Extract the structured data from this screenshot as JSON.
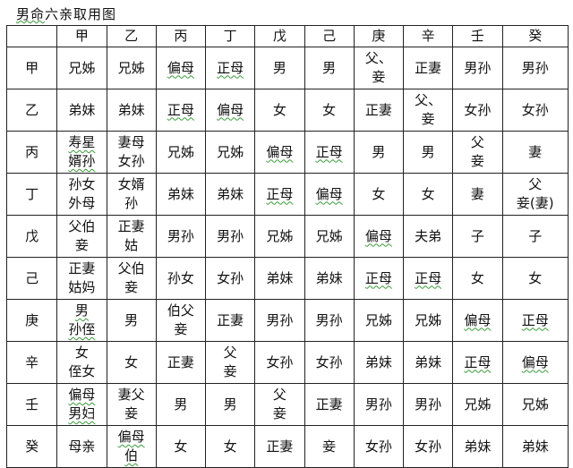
{
  "title": {
    "underlined": "男命",
    "rest": "六亲取用图"
  },
  "columns": [
    "",
    "甲",
    "乙",
    "丙",
    "丁",
    "戊",
    "己",
    "庚",
    "辛",
    "壬",
    "癸"
  ],
  "rows": [
    {
      "label": "甲",
      "cells": [
        "兄姊",
        "兄姊",
        "偏母",
        "正母",
        "男",
        "男",
        "父、\n妾",
        "正妻",
        "男孙",
        "男孙"
      ]
    },
    {
      "label": "乙",
      "cells": [
        "弟妹",
        "弟妹",
        "正母",
        "偏母",
        "女",
        "女",
        "正妻",
        "父、\n妾",
        "女孙",
        "女孙"
      ]
    },
    {
      "label": "丙",
      "cells": [
        "寿星\n婿孙",
        "妻母\n女孙",
        "兄姊",
        "兄姊",
        "偏母",
        "正母",
        "男",
        "男",
        "父\n妾",
        "妻"
      ]
    },
    {
      "label": "丁",
      "cells": [
        "孙女\n外母",
        "女婿\n孙",
        "弟妹",
        "弟妹",
        "正母",
        "偏母",
        "女",
        "女",
        "妻",
        "父\n妾(妻)"
      ]
    },
    {
      "label": "戊",
      "cells": [
        "父伯\n妾",
        "正妻\n姑",
        "男孙",
        "男孙",
        "兄姊",
        "兄姊",
        "偏母",
        "夫弟",
        "子",
        "子"
      ]
    },
    {
      "label": "己",
      "cells": [
        "正妻\n姑妈",
        "父伯\n妾",
        "孙女",
        "女孙",
        "弟妹",
        "弟妹",
        "正母",
        "正母",
        "女",
        "女"
      ]
    },
    {
      "label": "庚",
      "cells": [
        "男\n孙侄",
        "男",
        "伯父\n妾",
        "正妻",
        "男孙",
        "男孙",
        "兄姊",
        "兄姊",
        "偏母",
        "正母"
      ]
    },
    {
      "label": "辛",
      "cells": [
        "女\n侄女",
        "女",
        "正妻",
        "父\n妾",
        "女孙",
        "女孙",
        "弟妹",
        "弟妹",
        "正母",
        "偏母"
      ]
    },
    {
      "label": "壬",
      "cells": [
        "偏母\n男妇",
        "妻父\n妾",
        "男",
        "男",
        "父\n妾",
        "正妻",
        "男孙",
        "男孙",
        "兄姊",
        "兄姊"
      ]
    },
    {
      "label": "癸",
      "cells": [
        "母亲",
        "偏母\n伯",
        "女",
        "女",
        "正妻",
        "妾",
        "女孙",
        "女孙",
        "弟妹",
        "弟妹"
      ]
    }
  ],
  "colors": {
    "border": "#222222",
    "spellcheck_underline": "#3a9a3a"
  }
}
